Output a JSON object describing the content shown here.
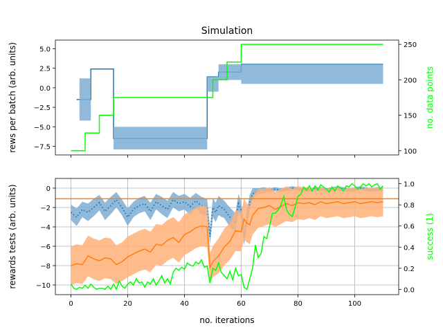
{
  "colors": {
    "blue": "#1f77b4",
    "blue_band": "#7eadd4",
    "orange": "#ff7f0e",
    "orange_band": "#ffb27a",
    "green": "#00ff00",
    "grid": "#b0b0b0"
  },
  "chart_data": [
    {
      "type": "line",
      "title": "Simulation",
      "xlabel": "",
      "ylabel": "rews per batch (arb. units)",
      "y2label": "no. data points",
      "xlim": [
        -5.5,
        115.5
      ],
      "ylim": [
        -8.6,
        6.1
      ],
      "y2lim": [
        94,
        256
      ],
      "yticks": [
        -7.5,
        -5.0,
        -2.5,
        0.0,
        2.5,
        5.0
      ],
      "ytick_labels": [
        "−7.5",
        "−5.0",
        "−2.5",
        "0.0",
        "2.5",
        "5.0"
      ],
      "y2ticks": [
        100,
        150,
        200,
        250
      ],
      "y2tick_labels": [
        "100",
        "150",
        "200",
        "250"
      ],
      "grid": false,
      "series": [
        {
          "axis": "left",
          "style": "step",
          "color": "blue",
          "x": [
            2,
            7,
            15,
            48,
            52,
            60,
            110
          ],
          "values": [
            -1.5,
            2.4,
            -6.5,
            1.4,
            2.0,
            3.0,
            3.0
          ]
        },
        {
          "axis": "left",
          "style": "band",
          "color": "blue_band",
          "x": [
            3,
            7,
            15,
            48,
            52,
            60,
            110
          ],
          "low": [
            -4.2,
            2.4,
            -7.9,
            -0.5,
            1.0,
            0.5,
            0.5
          ],
          "high": [
            1.2,
            2.4,
            -5.0,
            1.4,
            3.0,
            3.0,
            3.0
          ]
        },
        {
          "axis": "right",
          "style": "step",
          "color": "green",
          "x": [
            0,
            5,
            10,
            15,
            50,
            55,
            60,
            110
          ],
          "values": [
            100,
            125,
            150,
            175,
            200,
            225,
            250,
            250
          ]
        }
      ]
    },
    {
      "type": "line",
      "title": "",
      "xlabel": "no. iterations",
      "ylabel": "rewards tests (arb. units)",
      "y2label": "success (1)",
      "xlim": [
        -5.5,
        115.5
      ],
      "ylim": [
        -11.0,
        1.0
      ],
      "y2lim": [
        -0.05,
        1.05
      ],
      "xticks": [
        0,
        20,
        40,
        60,
        80,
        100
      ],
      "xtick_labels": [
        "0",
        "20",
        "40",
        "60",
        "80",
        "100"
      ],
      "yticks": [
        0,
        -2,
        -4,
        -6,
        -8,
        -10
      ],
      "ytick_labels": [
        "0",
        "−2",
        "−4",
        "−6",
        "−8",
        "−10"
      ],
      "y2ticks": [
        0.0,
        0.2,
        0.4,
        0.6,
        0.8,
        1.0
      ],
      "y2tick_labels": [
        "0.0",
        "0.2",
        "0.4",
        "0.6",
        "0.8",
        "1.0"
      ],
      "grid": true,
      "hline": {
        "y": -1.1,
        "color": "orange"
      },
      "series": [
        {
          "axis": "left",
          "style": "dotted-band",
          "color": "blue",
          "x": [
            0,
            2,
            4,
            6,
            8,
            10,
            12,
            14,
            16,
            18,
            20,
            22,
            24,
            26,
            28,
            30,
            32,
            34,
            36,
            38,
            40,
            42,
            44,
            46,
            48,
            49,
            50,
            51,
            52,
            54,
            56,
            58,
            59,
            60,
            61,
            62,
            63,
            64,
            66,
            68,
            70,
            72,
            74,
            76,
            78,
            80,
            82,
            84,
            86,
            88,
            90,
            92,
            94,
            96,
            98,
            100,
            102,
            104,
            106,
            108,
            110
          ],
          "values": [
            -2.5,
            -3.0,
            -2.2,
            -2.5,
            -2.0,
            -1.5,
            -2.4,
            -1.8,
            -1.2,
            -2.0,
            -3.0,
            -2.2,
            -1.8,
            -1.6,
            -2.4,
            -1.4,
            -1.8,
            -2.2,
            -1.2,
            -1.6,
            -1.4,
            -1.9,
            -1.3,
            -1.8,
            -2.0,
            -5.0,
            -2.0,
            -2.5,
            -1.8,
            -2.2,
            -3.0,
            -3.6,
            -1.6,
            -2.3,
            -5.0,
            -3.2,
            -1.5,
            -0.6,
            -0.3,
            -0.2,
            -0.2,
            -0.1,
            -0.2,
            -0.1,
            0.0,
            -0.1,
            -0.2,
            -0.2,
            -0.1,
            -0.1,
            -0.2,
            -0.1,
            0.0,
            -0.1,
            -0.2,
            -0.1,
            0.0,
            -0.1,
            -0.2,
            -0.1,
            -0.1
          ],
          "low": [
            -3.3,
            -3.9,
            -3.0,
            -3.4,
            -2.9,
            -2.3,
            -3.3,
            -2.7,
            -2.0,
            -2.8,
            -3.9,
            -3.0,
            -2.6,
            -2.4,
            -3.3,
            -2.2,
            -2.7,
            -3.1,
            -2.0,
            -2.4,
            -2.2,
            -2.8,
            -2.1,
            -2.7,
            -2.9,
            -5.8,
            -3.0,
            -3.5,
            -2.8,
            -3.1,
            -4.0,
            -4.6,
            -2.6,
            -3.2,
            -5.9,
            -4.1,
            -2.3,
            -1.2,
            -0.6,
            -0.5,
            -0.4,
            -0.3,
            -0.4,
            -0.3,
            -0.2,
            -0.3,
            -0.4,
            -0.4,
            -0.3,
            -0.3,
            -0.4,
            -0.3,
            -0.2,
            -0.3,
            -0.4,
            -0.3,
            -0.2,
            -0.3,
            -0.4,
            -0.3,
            -0.3
          ],
          "high": [
            -1.7,
            -2.1,
            -1.4,
            -1.6,
            -1.1,
            -0.7,
            -1.5,
            -0.9,
            -0.4,
            -1.2,
            -2.1,
            -1.4,
            -1.0,
            -0.8,
            -1.5,
            -0.6,
            -0.9,
            -1.3,
            -0.4,
            -0.8,
            -0.6,
            -1.0,
            -0.5,
            -0.9,
            -1.1,
            -4.2,
            -1.0,
            -1.5,
            -0.8,
            -1.3,
            -2.0,
            -2.6,
            -0.6,
            -1.4,
            -4.1,
            -2.3,
            -0.7,
            0.0,
            0.0,
            0.1,
            0.0,
            0.1,
            0.0,
            0.1,
            0.2,
            0.1,
            0.0,
            0.0,
            0.1,
            0.1,
            0.0,
            0.1,
            0.2,
            0.1,
            0.0,
            0.1,
            0.2,
            0.1,
            0.0,
            0.1,
            0.1
          ]
        },
        {
          "axis": "left",
          "style": "line-band",
          "color": "orange",
          "x": [
            0,
            2,
            4,
            6,
            8,
            10,
            12,
            14,
            16,
            18,
            20,
            22,
            24,
            26,
            28,
            30,
            32,
            34,
            36,
            38,
            40,
            42,
            44,
            46,
            48,
            49,
            50,
            52,
            54,
            56,
            58,
            60,
            61,
            62,
            63,
            64,
            66,
            68,
            70,
            72,
            74,
            76,
            78,
            80,
            82,
            84,
            86,
            88,
            90,
            92,
            94,
            96,
            98,
            100,
            102,
            104,
            106,
            108,
            110
          ],
          "values": [
            -8.0,
            -7.8,
            -7.9,
            -7.0,
            -7.3,
            -7.5,
            -7.2,
            -7.3,
            -7.9,
            -7.6,
            -7.1,
            -6.8,
            -6.5,
            -6.3,
            -6.6,
            -5.8,
            -5.9,
            -5.4,
            -5.1,
            -5.6,
            -4.8,
            -4.5,
            -4.1,
            -3.9,
            -4.0,
            -8.2,
            -7.6,
            -7.0,
            -6.1,
            -5.5,
            -4.4,
            -4.5,
            -3.2,
            -3.6,
            -3.8,
            -2.8,
            -2.1,
            -2.0,
            -1.8,
            -2.2,
            -1.9,
            -1.6,
            -1.8,
            -1.5,
            -1.6,
            -1.5,
            -1.7,
            -1.4,
            -1.6,
            -1.5,
            -1.4,
            -1.6,
            -1.5,
            -1.4,
            -1.6,
            -1.5,
            -1.4,
            -1.5,
            -1.4
          ],
          "low": [
            -10.0,
            -9.8,
            -9.9,
            -9.1,
            -9.4,
            -9.6,
            -9.3,
            -9.4,
            -9.9,
            -9.6,
            -9.2,
            -8.9,
            -8.6,
            -8.4,
            -8.7,
            -7.9,
            -8.0,
            -7.5,
            -7.2,
            -7.7,
            -6.9,
            -6.6,
            -6.2,
            -6.0,
            -6.1,
            -9.7,
            -9.2,
            -8.8,
            -8.0,
            -7.4,
            -6.5,
            -6.5,
            -5.3,
            -5.6,
            -5.8,
            -4.8,
            -4.1,
            -3.9,
            -3.7,
            -4.0,
            -3.7,
            -3.4,
            -3.5,
            -3.2,
            -3.3,
            -3.1,
            -3.3,
            -2.9,
            -3.1,
            -3.0,
            -2.9,
            -3.1,
            -3.0,
            -2.9,
            -3.1,
            -3.0,
            -2.9,
            -3.0,
            -2.9
          ],
          "high": [
            -6.0,
            -5.8,
            -5.9,
            -4.9,
            -5.2,
            -5.4,
            -5.1,
            -5.2,
            -5.9,
            -5.6,
            -5.0,
            -4.7,
            -4.4,
            -4.2,
            -4.5,
            -3.7,
            -3.8,
            -3.3,
            -3.0,
            -3.5,
            -2.7,
            -2.4,
            -2.0,
            -1.8,
            -1.9,
            -6.7,
            -6.0,
            -5.2,
            -4.2,
            -3.6,
            -2.3,
            -2.5,
            -1.1,
            -1.6,
            -1.8,
            -0.8,
            -0.1,
            -0.1,
            0.1,
            -0.4,
            -0.1,
            0.2,
            -0.1,
            0.2,
            0.1,
            0.1,
            -0.1,
            0.1,
            -0.1,
            0.0,
            0.1,
            -0.1,
            0.0,
            0.1,
            -0.1,
            0.0,
            0.1,
            0.0,
            0.1
          ]
        },
        {
          "axis": "right",
          "style": "line",
          "color": "green",
          "x": [
            0,
            1,
            2,
            3,
            4,
            5,
            6,
            7,
            8,
            9,
            10,
            11,
            12,
            13,
            14,
            15,
            16,
            17,
            18,
            19,
            20,
            21,
            22,
            23,
            24,
            25,
            26,
            27,
            28,
            29,
            30,
            31,
            32,
            33,
            34,
            35,
            36,
            37,
            38,
            39,
            40,
            41,
            42,
            43,
            44,
            45,
            46,
            47,
            48,
            49,
            50,
            51,
            52,
            53,
            54,
            55,
            56,
            57,
            58,
            59,
            60,
            61,
            62,
            63,
            64,
            65,
            66,
            67,
            68,
            69,
            70,
            71,
            72,
            73,
            74,
            75,
            76,
            77,
            78,
            79,
            80,
            81,
            82,
            83,
            84,
            85,
            86,
            87,
            88,
            89,
            90,
            91,
            92,
            93,
            94,
            95,
            96,
            97,
            98,
            99,
            100,
            101,
            102,
            103,
            104,
            105,
            106,
            107,
            108,
            109,
            110
          ],
          "values": [
            0.05,
            0.01,
            0.0,
            0.02,
            0.01,
            0.04,
            0.01,
            0.05,
            0.02,
            0.0,
            0.01,
            0.01,
            0.0,
            0.03,
            0.0,
            0.05,
            0.0,
            0.08,
            0.03,
            0.01,
            0.05,
            0.07,
            0.04,
            0.1,
            0.06,
            0.07,
            0.02,
            0.07,
            0.05,
            0.1,
            0.04,
            0.08,
            0.13,
            0.06,
            0.1,
            0.05,
            0.16,
            0.2,
            0.18,
            0.21,
            0.19,
            0.25,
            0.23,
            0.22,
            0.26,
            0.24,
            0.28,
            0.21,
            0.22,
            0.06,
            0.2,
            0.18,
            0.25,
            0.16,
            0.13,
            0.1,
            0.17,
            0.09,
            0.2,
            0.13,
            0.14,
            0.02,
            0.0,
            0.1,
            0.2,
            0.42,
            0.3,
            0.34,
            0.5,
            0.48,
            0.6,
            0.72,
            0.72,
            0.75,
            0.8,
            0.88,
            0.75,
            0.71,
            0.69,
            0.78,
            0.88,
            0.9,
            0.97,
            0.94,
            0.98,
            0.93,
            0.98,
            0.94,
            0.99,
            0.97,
            0.95,
            0.92,
            0.97,
            0.93,
            0.98,
            0.96,
            0.93,
            0.98,
            0.97,
            1.0,
            0.98,
            0.95,
            0.97,
            1.0,
            0.98,
            1.0,
            0.97,
            0.99,
            1.0,
            0.95,
            0.98
          ]
        }
      ]
    }
  ]
}
